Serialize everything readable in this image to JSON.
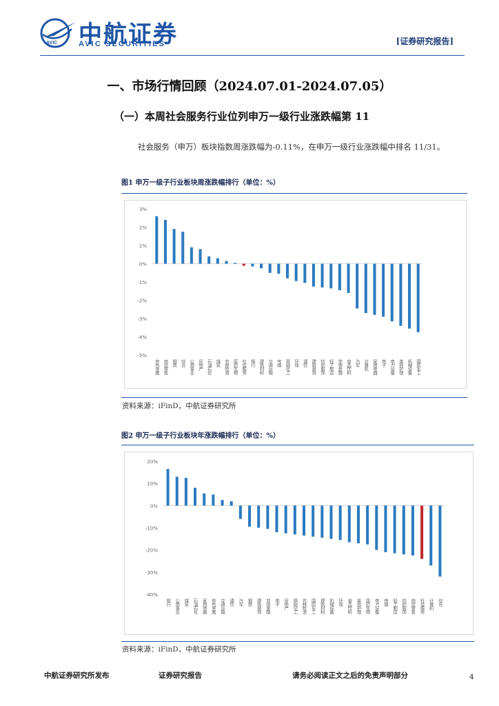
{
  "header": {
    "logo_cn": "中航证券",
    "logo_en": "AVIC SECURITIES",
    "logo_mark_text": "AVIC",
    "tag": "[证券研究报告]"
  },
  "section": {
    "title": "一、市场行情回顾（2024.07.01-2024.07.05）",
    "subtitle": "（一）本周社会服务行业位列申万一级行业涨跌幅第 11",
    "paragraph": "社会服务（申万）板块指数周涨跌幅为-0.11%，在申万一级行业涨跌幅中排名 11/31。"
  },
  "figure1": {
    "title": "图1 申万一级子行业板块周涨跌幅排行（单位：%）",
    "source": "资料来源：iFinD，中航证券研究所"
  },
  "figure2": {
    "title": "图2 申万一级子行业板块年涨跌幅排行（单位：%）",
    "source": "资料来源：iFinD，中航证券研究所"
  },
  "footer": {
    "left": "中航证券研究所发布",
    "middle": "证券研究报告",
    "right": "请务必阅读正文之后的免责声明部分",
    "page": "4"
  },
  "colors": {
    "bar": "#2a7ac0",
    "highlight": "#c0282d",
    "brand": "#1f55a5"
  },
  "chart_data": [
    {
      "type": "bar",
      "categories": [
        "有色金属",
        "商贸零售",
        "钢铁",
        "综合",
        "公用事业",
        "房地产",
        "石油石化",
        "煤炭",
        "农林牧渔",
        "医药生物",
        "社会服务",
        "银行",
        "建筑材料",
        "交通运输",
        "传媒",
        "基础化工",
        "环保",
        "通信",
        "建筑装饰",
        "纺织服饰",
        "轻工制造",
        "非银金融",
        "食品饮料",
        "汽车",
        "计算机",
        "家用电器",
        "电子",
        "电力设备",
        "美容护理",
        "机械设备",
        "国防军工"
      ],
      "values": [
        2.6,
        2.4,
        1.9,
        1.75,
        0.9,
        0.8,
        0.4,
        0.3,
        0.15,
        0.05,
        -0.11,
        -0.15,
        -0.25,
        -0.5,
        -0.55,
        -0.8,
        -0.95,
        -1.05,
        -1.25,
        -1.3,
        -1.35,
        -1.45,
        -1.6,
        -2.45,
        -2.7,
        -2.8,
        -2.9,
        -3.15,
        -3.4,
        -3.55,
        -3.75
      ],
      "highlight": "社会服务",
      "ylim": [
        -5,
        3
      ],
      "yticks": [
        "3%",
        "2%",
        "1%",
        "0%",
        "-1%",
        "-2%",
        "-3%",
        "-4%",
        "-5%"
      ],
      "grid": false
    },
    {
      "type": "bar",
      "categories": [
        "银行",
        "公用事业",
        "煤炭",
        "石油石化",
        "家用电器",
        "有色金属",
        "交通运输",
        "通信",
        "汽车",
        "钢铁",
        "建筑装饰",
        "非银金融",
        "电子",
        "房地产",
        "基础化工",
        "农林牧渔",
        "国防军工",
        "建筑材料",
        "机械设备",
        "环保",
        "食品饮料",
        "美容护理",
        "医药生物",
        "电力设备",
        "传媒",
        "轻工制造",
        "纺织服饰",
        "商贸零售",
        "社会服务",
        "计算机",
        "综合"
      ],
      "values": [
        16.5,
        13,
        12.5,
        8,
        5.5,
        5,
        2.5,
        2,
        -6,
        -9.5,
        -10,
        -10.5,
        -12,
        -12.5,
        -13,
        -13.5,
        -14,
        -14.5,
        -15,
        -15.5,
        -16.5,
        -17,
        -17.5,
        -20,
        -21,
        -21.5,
        -22,
        -22.5,
        -24,
        -27,
        -32
      ],
      "highlight": "社会服务",
      "ylim": [
        -40,
        20
      ],
      "yticks": [
        "20%",
        "10%",
        "0%",
        "-10%",
        "-20%",
        "-30%",
        "-40%"
      ],
      "grid": false
    }
  ]
}
